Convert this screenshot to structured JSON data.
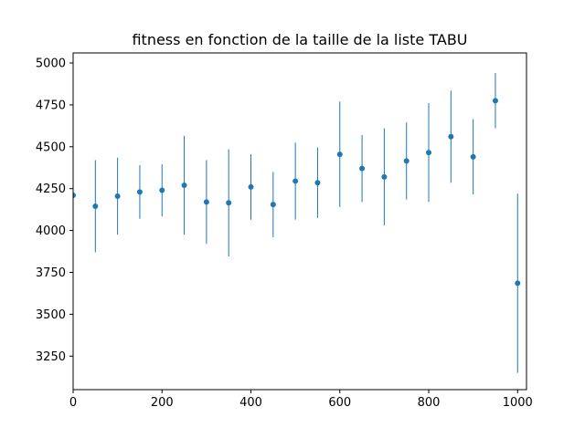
{
  "chart_data": {
    "type": "scatter",
    "title": "fitness en fonction de la taille de la liste TABU",
    "xlabel": "",
    "ylabel": "",
    "xlim": [
      0,
      1020
    ],
    "ylim": [
      3050,
      5060
    ],
    "xticks": [
      0,
      200,
      400,
      600,
      800,
      1000
    ],
    "yticks": [
      3250,
      3500,
      3750,
      4000,
      4250,
      4500,
      4750,
      5000
    ],
    "grid": false,
    "colors": {
      "series": "#1f77b4",
      "axes": "#000000"
    },
    "series": [
      {
        "x": [
          0,
          50,
          100,
          150,
          200,
          250,
          300,
          350,
          400,
          450,
          500,
          550,
          600,
          650,
          700,
          750,
          800,
          850,
          900,
          950,
          1000
        ],
        "y": [
          4210,
          4145,
          4205,
          4230,
          4240,
          4270,
          4170,
          4165,
          4260,
          4155,
          4295,
          4285,
          4455,
          4370,
          4320,
          4415,
          4465,
          4560,
          4440,
          4775,
          3685
        ],
        "yerr": [
          290,
          275,
          230,
          160,
          155,
          295,
          250,
          320,
          195,
          195,
          230,
          210,
          315,
          200,
          290,
          230,
          295,
          275,
          225,
          165,
          535
        ]
      }
    ]
  }
}
